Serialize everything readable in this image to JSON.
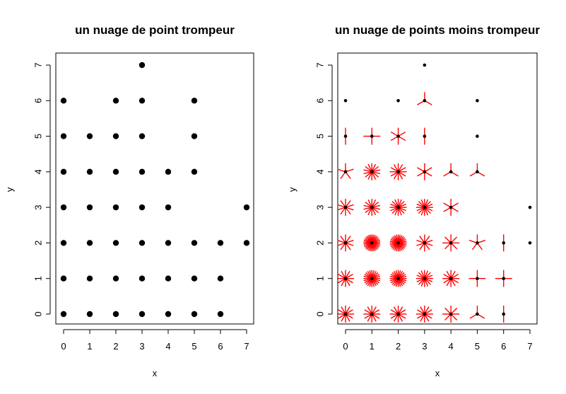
{
  "chart_data": [
    {
      "type": "scatter",
      "title": "un nuage de point trompeur",
      "xlabel": "x",
      "ylabel": "y",
      "xlim": [
        0,
        7
      ],
      "ylim": [
        0,
        7
      ],
      "xticks": [
        "0",
        "1",
        "2",
        "3",
        "4",
        "5",
        "6",
        "7"
      ],
      "yticks": [
        "0",
        "1",
        "2",
        "3",
        "4",
        "5",
        "6",
        "7"
      ],
      "grid": false,
      "point_color": "#000000",
      "points": [
        [
          0,
          0
        ],
        [
          1,
          0
        ],
        [
          2,
          0
        ],
        [
          3,
          0
        ],
        [
          4,
          0
        ],
        [
          5,
          0
        ],
        [
          6,
          0
        ],
        [
          0,
          1
        ],
        [
          1,
          1
        ],
        [
          2,
          1
        ],
        [
          3,
          1
        ],
        [
          4,
          1
        ],
        [
          5,
          1
        ],
        [
          6,
          1
        ],
        [
          0,
          2
        ],
        [
          1,
          2
        ],
        [
          2,
          2
        ],
        [
          3,
          2
        ],
        [
          4,
          2
        ],
        [
          5,
          2
        ],
        [
          6,
          2
        ],
        [
          7,
          2
        ],
        [
          0,
          3
        ],
        [
          1,
          3
        ],
        [
          2,
          3
        ],
        [
          3,
          3
        ],
        [
          4,
          3
        ],
        [
          7,
          3
        ],
        [
          0,
          4
        ],
        [
          1,
          4
        ],
        [
          2,
          4
        ],
        [
          3,
          4
        ],
        [
          4,
          4
        ],
        [
          5,
          4
        ],
        [
          0,
          5
        ],
        [
          1,
          5
        ],
        [
          2,
          5
        ],
        [
          3,
          5
        ],
        [
          5,
          5
        ],
        [
          0,
          6
        ],
        [
          2,
          6
        ],
        [
          3,
          6
        ],
        [
          5,
          6
        ],
        [
          3,
          7
        ]
      ]
    },
    {
      "type": "scatter",
      "title": "un nuage de points moins trompeur",
      "xlabel": "x",
      "ylabel": "y",
      "xlim": [
        0,
        7
      ],
      "ylim": [
        0,
        7
      ],
      "xticks": [
        "0",
        "1",
        "2",
        "3",
        "4",
        "5",
        "6",
        "7"
      ],
      "yticks": [
        "0",
        "1",
        "2",
        "3",
        "4",
        "5",
        "6",
        "7"
      ],
      "grid": false,
      "point_color": "#000000",
      "petal_color": "#ff0000",
      "sunflower": [
        {
          "x": 0,
          "y": 0,
          "n": 12
        },
        {
          "x": 1,
          "y": 0,
          "n": 12
        },
        {
          "x": 2,
          "y": 0,
          "n": 12
        },
        {
          "x": 3,
          "y": 0,
          "n": 12
        },
        {
          "x": 4,
          "y": 0,
          "n": 8
        },
        {
          "x": 5,
          "y": 0,
          "n": 3
        },
        {
          "x": 6,
          "y": 0,
          "n": 2
        },
        {
          "x": 0,
          "y": 1,
          "n": 12
        },
        {
          "x": 1,
          "y": 1,
          "n": 24
        },
        {
          "x": 2,
          "y": 1,
          "n": 24
        },
        {
          "x": 3,
          "y": 1,
          "n": 16
        },
        {
          "x": 4,
          "y": 1,
          "n": 12
        },
        {
          "x": 5,
          "y": 1,
          "n": 4
        },
        {
          "x": 6,
          "y": 1,
          "n": 4
        },
        {
          "x": 0,
          "y": 2,
          "n": 10
        },
        {
          "x": 1,
          "y": 2,
          "n": 30
        },
        {
          "x": 2,
          "y": 2,
          "n": 28
        },
        {
          "x": 3,
          "y": 2,
          "n": 10
        },
        {
          "x": 4,
          "y": 2,
          "n": 8
        },
        {
          "x": 5,
          "y": 2,
          "n": 5
        },
        {
          "x": 6,
          "y": 2,
          "n": 2
        },
        {
          "x": 7,
          "y": 2,
          "n": 1
        },
        {
          "x": 0,
          "y": 3,
          "n": 10
        },
        {
          "x": 1,
          "y": 3,
          "n": 14
        },
        {
          "x": 2,
          "y": 3,
          "n": 16
        },
        {
          "x": 3,
          "y": 3,
          "n": 16
        },
        {
          "x": 4,
          "y": 3,
          "n": 6
        },
        {
          "x": 7,
          "y": 3,
          "n": 1
        },
        {
          "x": 0,
          "y": 4,
          "n": 5
        },
        {
          "x": 1,
          "y": 4,
          "n": 14
        },
        {
          "x": 2,
          "y": 4,
          "n": 12
        },
        {
          "x": 3,
          "y": 4,
          "n": 6
        },
        {
          "x": 4,
          "y": 4,
          "n": 3
        },
        {
          "x": 5,
          "y": 4,
          "n": 3
        },
        {
          "x": 0,
          "y": 5,
          "n": 2
        },
        {
          "x": 1,
          "y": 5,
          "n": 4
        },
        {
          "x": 2,
          "y": 5,
          "n": 6
        },
        {
          "x": 3,
          "y": 5,
          "n": 2
        },
        {
          "x": 5,
          "y": 5,
          "n": 1
        },
        {
          "x": 0,
          "y": 6,
          "n": 1
        },
        {
          "x": 2,
          "y": 6,
          "n": 1
        },
        {
          "x": 3,
          "y": 6,
          "n": 3
        },
        {
          "x": 5,
          "y": 6,
          "n": 1
        },
        {
          "x": 3,
          "y": 7,
          "n": 1
        }
      ]
    }
  ]
}
